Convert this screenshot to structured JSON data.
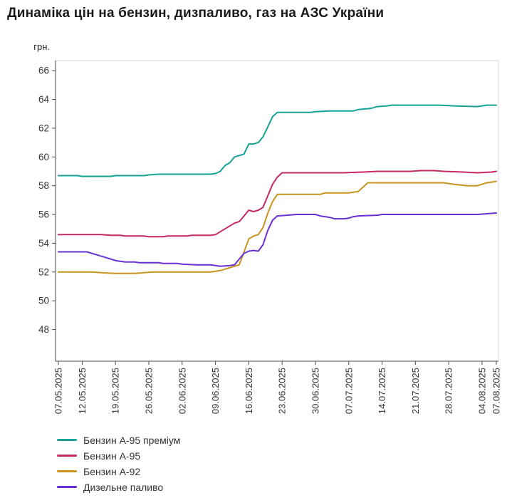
{
  "page": {
    "title": "Динаміка цін на бензин, дизпаливо, газ на АЗС України"
  },
  "chart_data": {
    "type": "line",
    "title": "Динаміка цін на бензин, дизпаливо, газ на АЗС України",
    "ylabel": "грн.",
    "xlabel": "",
    "grid": false,
    "legend_position": "bottom-left",
    "ylim": [
      45.8,
      66.7
    ],
    "yticks": [
      48,
      50,
      52,
      54,
      56,
      58,
      60,
      62,
      64,
      66
    ],
    "x_unit": "days since 07.05.2025",
    "x_max": 92,
    "x_ticks": [
      {
        "day": 0,
        "label": "07.05.2025"
      },
      {
        "day": 5,
        "label": "12.05.2025"
      },
      {
        "day": 12,
        "label": "19.05.2025"
      },
      {
        "day": 19,
        "label": "26.05.2025"
      },
      {
        "day": 26,
        "label": "02.06.2025"
      },
      {
        "day": 33,
        "label": "09.06.2025"
      },
      {
        "day": 40,
        "label": "16.06.2025"
      },
      {
        "day": 47,
        "label": "23.06.2025"
      },
      {
        "day": 54,
        "label": "30.06.2025"
      },
      {
        "day": 61,
        "label": "07.07.2025"
      },
      {
        "day": 68,
        "label": "14.07.2025"
      },
      {
        "day": 75,
        "label": "21.07.2025"
      },
      {
        "day": 82,
        "label": "28.07.2025"
      },
      {
        "day": 89,
        "label": "04.08.2025"
      },
      {
        "day": 92,
        "label": "07.08.2025"
      }
    ],
    "series": [
      {
        "name": "Бензин А-95 преміум",
        "color": "#15a294",
        "points": [
          [
            0,
            58.7
          ],
          [
            4,
            58.7
          ],
          [
            5,
            58.65
          ],
          [
            11,
            58.65
          ],
          [
            12,
            58.7
          ],
          [
            18,
            58.7
          ],
          [
            19,
            58.75
          ],
          [
            21,
            58.8
          ],
          [
            32,
            58.8
          ],
          [
            33,
            58.85
          ],
          [
            34,
            59.0
          ],
          [
            35,
            59.4
          ],
          [
            36,
            59.6
          ],
          [
            37,
            60.0
          ],
          [
            38,
            60.1
          ],
          [
            39,
            60.2
          ],
          [
            40,
            60.9
          ],
          [
            41,
            60.9
          ],
          [
            42,
            61.0
          ],
          [
            43,
            61.4
          ],
          [
            44,
            62.1
          ],
          [
            45,
            62.8
          ],
          [
            46,
            63.1
          ],
          [
            53,
            63.1
          ],
          [
            54,
            63.15
          ],
          [
            57,
            63.2
          ],
          [
            62,
            63.2
          ],
          [
            63,
            63.3
          ],
          [
            65,
            63.35
          ],
          [
            66,
            63.4
          ],
          [
            67,
            63.5
          ],
          [
            69,
            63.55
          ],
          [
            70,
            63.6
          ],
          [
            80,
            63.6
          ],
          [
            83,
            63.55
          ],
          [
            88,
            63.5
          ],
          [
            90,
            63.6
          ],
          [
            92,
            63.6
          ]
        ]
      },
      {
        "name": "Бензин А-95",
        "color": "#c62866",
        "points": [
          [
            0,
            54.6
          ],
          [
            9,
            54.6
          ],
          [
            11,
            54.55
          ],
          [
            13,
            54.55
          ],
          [
            14,
            54.5
          ],
          [
            18,
            54.5
          ],
          [
            19,
            54.45
          ],
          [
            22,
            54.45
          ],
          [
            23,
            54.5
          ],
          [
            27,
            54.5
          ],
          [
            28,
            54.55
          ],
          [
            32,
            54.55
          ],
          [
            33,
            54.6
          ],
          [
            34,
            54.8
          ],
          [
            35,
            55.0
          ],
          [
            36,
            55.2
          ],
          [
            37,
            55.4
          ],
          [
            38,
            55.5
          ],
          [
            39,
            55.9
          ],
          [
            40,
            56.3
          ],
          [
            41,
            56.2
          ],
          [
            42,
            56.3
          ],
          [
            43,
            56.5
          ],
          [
            44,
            57.3
          ],
          [
            45,
            58.1
          ],
          [
            46,
            58.6
          ],
          [
            47,
            58.9
          ],
          [
            60,
            58.9
          ],
          [
            64,
            58.95
          ],
          [
            67,
            59.0
          ],
          [
            74,
            59.0
          ],
          [
            76,
            59.05
          ],
          [
            79,
            59.05
          ],
          [
            81,
            59.0
          ],
          [
            85,
            58.95
          ],
          [
            88,
            58.9
          ],
          [
            91,
            58.95
          ],
          [
            92,
            59.0
          ]
        ]
      },
      {
        "name": "Бензин А-92",
        "color": "#c7941e",
        "points": [
          [
            0,
            52.0
          ],
          [
            7,
            52.0
          ],
          [
            9,
            51.95
          ],
          [
            12,
            51.9
          ],
          [
            16,
            51.9
          ],
          [
            18,
            51.95
          ],
          [
            20,
            52.0
          ],
          [
            32,
            52.0
          ],
          [
            34,
            52.1
          ],
          [
            35,
            52.2
          ],
          [
            36,
            52.3
          ],
          [
            37,
            52.4
          ],
          [
            38,
            52.5
          ],
          [
            39,
            53.4
          ],
          [
            40,
            54.3
          ],
          [
            41,
            54.5
          ],
          [
            42,
            54.6
          ],
          [
            43,
            55.1
          ],
          [
            44,
            56.1
          ],
          [
            45,
            56.9
          ],
          [
            46,
            57.4
          ],
          [
            55,
            57.4
          ],
          [
            56,
            57.5
          ],
          [
            61,
            57.5
          ],
          [
            63,
            57.6
          ],
          [
            64,
            57.9
          ],
          [
            65,
            58.2
          ],
          [
            81,
            58.2
          ],
          [
            83,
            58.1
          ],
          [
            86,
            58.0
          ],
          [
            88,
            58.0
          ],
          [
            89,
            58.1
          ],
          [
            90,
            58.2
          ],
          [
            92,
            58.3
          ]
        ]
      },
      {
        "name": "Дизельне паливо",
        "color": "#6a30d4",
        "points": [
          [
            0,
            53.4
          ],
          [
            6,
            53.4
          ],
          [
            7,
            53.3
          ],
          [
            8,
            53.2
          ],
          [
            9,
            53.1
          ],
          [
            10,
            53.0
          ],
          [
            11,
            52.9
          ],
          [
            12,
            52.8
          ],
          [
            13,
            52.75
          ],
          [
            14,
            52.7
          ],
          [
            16,
            52.7
          ],
          [
            17,
            52.65
          ],
          [
            21,
            52.65
          ],
          [
            22,
            52.6
          ],
          [
            25,
            52.6
          ],
          [
            26,
            52.55
          ],
          [
            29,
            52.5
          ],
          [
            32,
            52.5
          ],
          [
            33,
            52.45
          ],
          [
            34,
            52.4
          ],
          [
            36,
            52.45
          ],
          [
            37,
            52.5
          ],
          [
            38,
            52.9
          ],
          [
            39,
            53.3
          ],
          [
            40,
            53.45
          ],
          [
            41,
            53.5
          ],
          [
            42,
            53.45
          ],
          [
            43,
            53.9
          ],
          [
            44,
            54.9
          ],
          [
            45,
            55.6
          ],
          [
            46,
            55.9
          ],
          [
            48,
            55.95
          ],
          [
            50,
            56.0
          ],
          [
            54,
            56.0
          ],
          [
            55,
            55.9
          ],
          [
            57,
            55.8
          ],
          [
            58,
            55.7
          ],
          [
            60,
            55.7
          ],
          [
            61,
            55.75
          ],
          [
            62,
            55.85
          ],
          [
            63,
            55.9
          ],
          [
            67,
            55.95
          ],
          [
            68,
            56.0
          ],
          [
            88,
            56.0
          ],
          [
            90,
            56.05
          ],
          [
            92,
            56.1
          ]
        ]
      }
    ]
  }
}
